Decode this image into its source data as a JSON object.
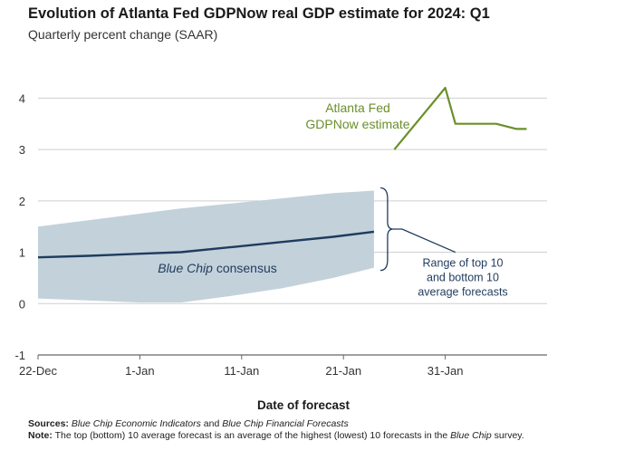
{
  "chart_data": {
    "type": "line",
    "title": "Evolution of Atlanta Fed GDPNow real GDP estimate for 2024: Q1",
    "subtitle": "Quarterly percent change (SAAR)",
    "xlabel": "Date of forecast",
    "ylabel": "",
    "ylim": [
      -1,
      4.5
    ],
    "yticks": [
      -1,
      0,
      1,
      2,
      3,
      4
    ],
    "xlim": [
      "2023-12-22",
      "2024-02-10"
    ],
    "xticks": [
      {
        "date": "2023-12-22",
        "label": "22-Dec"
      },
      {
        "date": "2024-01-01",
        "label": "1-Jan"
      },
      {
        "date": "2024-01-11",
        "label": "11-Jan"
      },
      {
        "date": "2024-01-21",
        "label": "21-Jan"
      },
      {
        "date": "2024-01-31",
        "label": "31-Jan"
      }
    ],
    "grid": true,
    "series": [
      {
        "name": "Atlanta Fed GDPNow estimate",
        "color": "#6a8f2a",
        "x": [
          "2024-01-26",
          "2024-01-31",
          "2024-02-01",
          "2024-02-05",
          "2024-02-07",
          "2024-02-08"
        ],
        "y": [
          3.0,
          4.2,
          3.5,
          3.5,
          3.4,
          3.4
        ]
      },
      {
        "name": "Blue Chip consensus",
        "color": "#1f3b5f",
        "x": [
          "2023-12-22",
          "2023-12-27",
          "2024-01-01",
          "2024-01-05",
          "2024-01-10",
          "2024-01-15",
          "2024-01-20",
          "2024-01-24"
        ],
        "y": [
          0.9,
          0.93,
          0.97,
          1.0,
          1.1,
          1.2,
          1.3,
          1.4
        ]
      }
    ],
    "band": {
      "name": "Range of top 10 and bottom 10 average forecasts",
      "color": "#c3d1da",
      "x": [
        "2023-12-22",
        "2024-01-01",
        "2024-01-05",
        "2024-01-10",
        "2024-01-15",
        "2024-01-20",
        "2024-01-24"
      ],
      "upper": [
        1.5,
        1.75,
        1.85,
        1.95,
        2.05,
        2.15,
        2.2
      ],
      "lower": [
        0.1,
        0.02,
        0.02,
        0.15,
        0.3,
        0.5,
        0.7
      ]
    },
    "annotations": {
      "gdpnow_label": [
        "Atlanta Fed",
        "GDPNow estimate"
      ],
      "consensus_label": {
        "italic": "Blue Chip",
        "rest": " consensus"
      },
      "range_label": [
        "Range of top 10",
        "and bottom 10",
        "average forecasts"
      ]
    }
  },
  "footer": {
    "sources_label": "Sources:",
    "sources_parts": [
      {
        "text": "Blue Chip Economic Indicators",
        "italic": true
      },
      {
        "text": " and ",
        "italic": false
      },
      {
        "text": "Blue Chip Financial Forecasts",
        "italic": true
      }
    ],
    "note_label": "Note:",
    "note_parts": [
      {
        "text": "The top (bottom) 10 average forecast is an average of the highest (lowest) 10 forecasts in the ",
        "italic": false
      },
      {
        "text": "Blue Chip",
        "italic": true
      },
      {
        "text": " survey.",
        "italic": false
      }
    ]
  }
}
